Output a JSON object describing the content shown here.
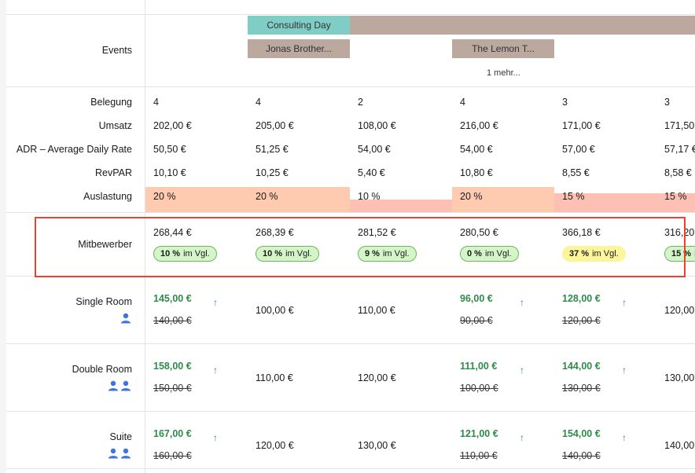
{
  "events": {
    "label": "Events",
    "items": [
      {
        "name": "Consulting Day",
        "color": "#7fcdc4"
      },
      {
        "name": "",
        "color": "#bba89f"
      },
      {
        "name": "Jonas Brother...",
        "color": "#bba89f"
      },
      {
        "name": "The Lemon T...",
        "color": "#bba89f"
      }
    ],
    "more": "1 mehr..."
  },
  "metrics": {
    "labels": [
      "Belegung",
      "Umsatz",
      "ADR – Average Daily Rate",
      "RevPAR",
      "Auslastung"
    ],
    "columns": [
      {
        "belegung": "4",
        "umsatz": "202,00 €",
        "adr": "50,50 €",
        "revpar": "10,10 €",
        "auslastung": "20 %"
      },
      {
        "belegung": "4",
        "umsatz": "205,00 €",
        "adr": "51,25 €",
        "revpar": "10,25 €",
        "auslastung": "20 %"
      },
      {
        "belegung": "2",
        "umsatz": "108,00 €",
        "adr": "54,00 €",
        "revpar": "5,40 €",
        "auslastung": "10 %"
      },
      {
        "belegung": "4",
        "umsatz": "216,00 €",
        "adr": "54,00 €",
        "revpar": "10,80 €",
        "auslastung": "20 %"
      },
      {
        "belegung": "3",
        "umsatz": "171,00 €",
        "adr": "57,00 €",
        "revpar": "8,55 €",
        "auslastung": "15 %"
      },
      {
        "belegung": "3",
        "umsatz": "171,50 €",
        "adr": "57,17 €",
        "revpar": "8,58 €",
        "auslastung": "15 %"
      }
    ]
  },
  "competitors": {
    "label": "Mitbewerber",
    "suffix": "im Vgl.",
    "columns": [
      {
        "price": "268,44 €",
        "pct": "10 %",
        "tone": "green"
      },
      {
        "price": "268,39 €",
        "pct": "10 %",
        "tone": "green"
      },
      {
        "price": "281,52 €",
        "pct": "9 %",
        "tone": "green"
      },
      {
        "price": "280,50 €",
        "pct": "0 %",
        "tone": "green"
      },
      {
        "price": "366,18 €",
        "pct": "37 %",
        "tone": "yellow"
      },
      {
        "price": "316,20",
        "pct": "15 %",
        "tone": "green"
      }
    ]
  },
  "rooms": [
    {
      "name": "Single Room",
      "icon": "person-icon",
      "persons": 1,
      "cells": [
        {
          "new": "145,00 €",
          "old": "140,00 €",
          "up": true
        },
        {
          "price": "100,00 €"
        },
        {
          "price": "110,00 €"
        },
        {
          "new": "96,00 €",
          "old": "90,00 €",
          "up": true
        },
        {
          "new": "128,00 €",
          "old": "120,00 €",
          "up": true
        },
        {
          "price": "120,00"
        }
      ]
    },
    {
      "name": "Double Room",
      "icon": "two-persons-icon",
      "persons": 2,
      "cells": [
        {
          "new": "158,00 €",
          "old": "150,00 €",
          "up": true
        },
        {
          "price": "110,00 €"
        },
        {
          "price": "120,00 €"
        },
        {
          "new": "111,00 €",
          "old": "100,00 €",
          "up": true
        },
        {
          "new": "144,00 €",
          "old": "130,00 €",
          "up": true
        },
        {
          "price": "130,00"
        }
      ]
    },
    {
      "name": "Suite",
      "icon": "two-persons-icon",
      "persons": 2,
      "cells": [
        {
          "new": "167,00 €",
          "old": "160,00 €",
          "up": true
        },
        {
          "price": "120,00 €"
        },
        {
          "price": "130,00 €"
        },
        {
          "new": "121,00 €",
          "old": "110,00 €",
          "up": true
        },
        {
          "new": "154,00 €",
          "old": "140,00 €",
          "up": true
        },
        {
          "price": "140,00"
        }
      ]
    }
  ],
  "colors": {
    "accent_green": "#2e8b4a",
    "occupancy_20": "#ffcbb0",
    "occupancy_10": "#ffc0b4",
    "highlight_border": "#e8432f"
  },
  "arrow_glyph": "↑"
}
